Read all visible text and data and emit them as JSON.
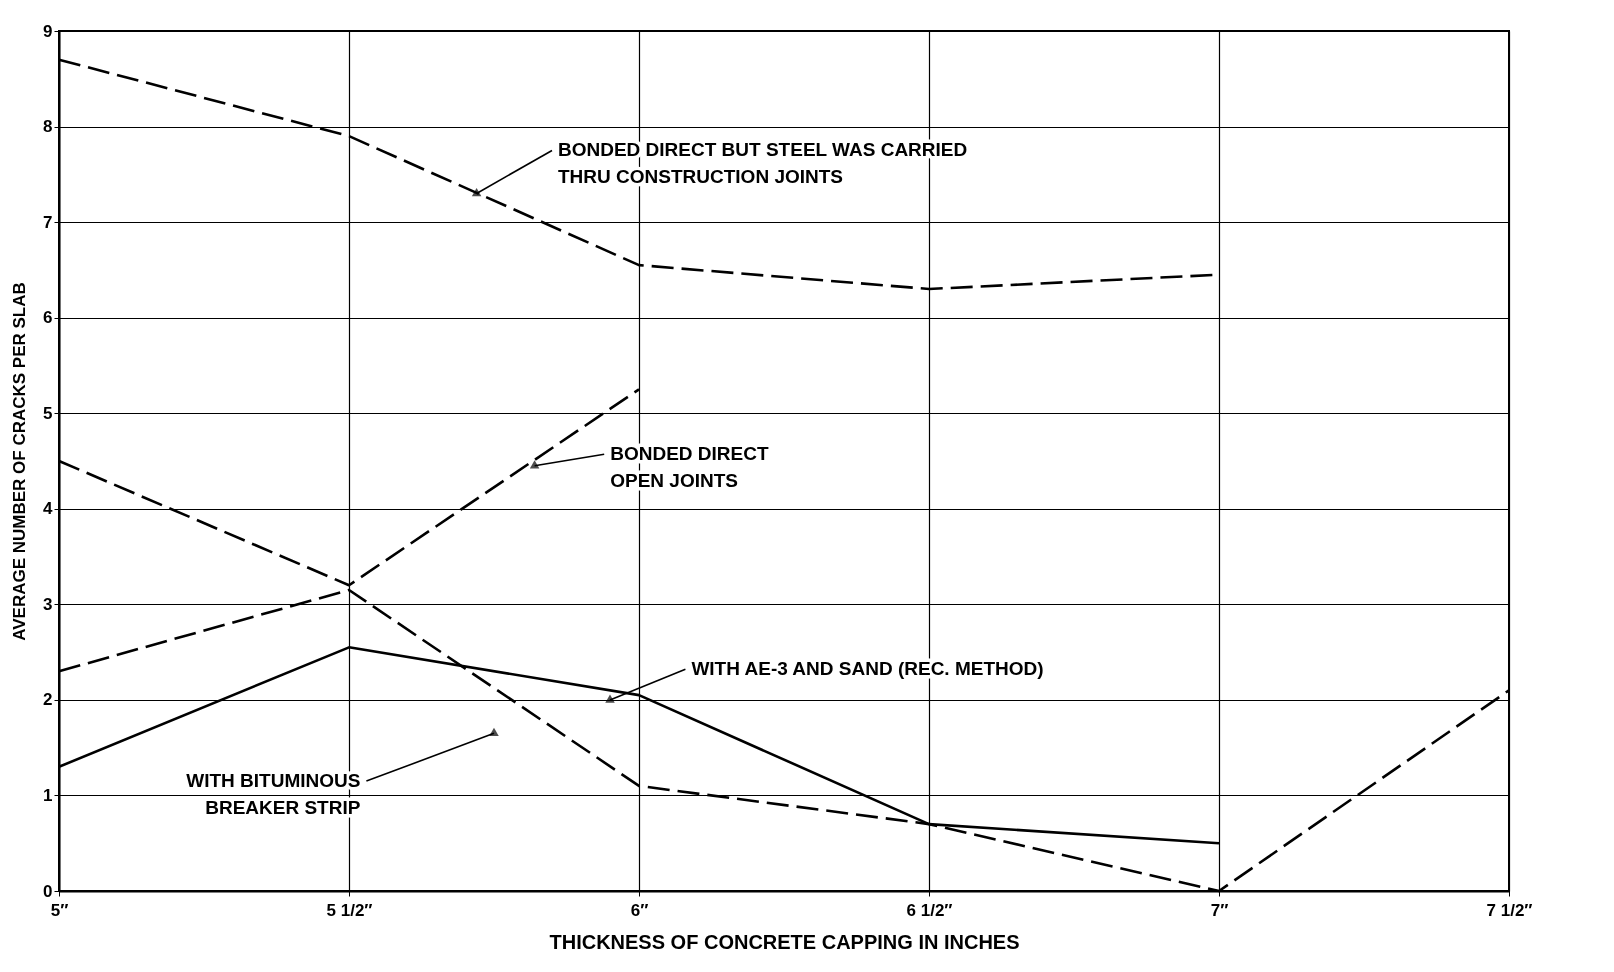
{
  "chart_data": {
    "type": "line",
    "xlabel": "THICKNESS OF CONCRETE CAPPING IN INCHES",
    "ylabel": "AVERAGE NUMBER OF CRACKS PER SLAB",
    "x": [
      5,
      5.5,
      6,
      6.5,
      7,
      7.5
    ],
    "series": [
      {
        "color": "#000000",
        "line_style": "dashed",
        "values": [
          8.7,
          7.9,
          6.55,
          6.3,
          6.45,
          null
        ]
      },
      {
        "color": "#000000",
        "line_style": "dashed",
        "values": [
          4.5,
          3.2,
          5.25,
          null,
          null,
          null
        ]
      },
      {
        "color": "#000000",
        "line_style": "dashed",
        "values": [
          2.3,
          3.15,
          1.1,
          0.7,
          0,
          2.1
        ]
      },
      {
        "color": "#000000",
        "line_style": "solid",
        "values": [
          1.3,
          2.55,
          2.05,
          0.7,
          0.5,
          null
        ]
      }
    ],
    "annotations": [
      {
        "text": "BONDED DIRECT BUT STEEL WAS CARRIED\nTHRU CONSTRUCTION JOINTS",
        "x": 5.72,
        "y": 7.3
      },
      {
        "text": "BONDED DIRECT\nOPEN JOINTS",
        "x": 5.82,
        "y": 4.45
      },
      {
        "text": "WITH AE-3 AND SAND (REC. METHOD)",
        "x": 5.95,
        "y": 2.0
      },
      {
        "text": "WITH BITUMINOUS\nBREAKER STRIP",
        "x": 5.75,
        "y": 1.65
      }
    ],
    "xlim": [
      5,
      7.5
    ],
    "ylim": [
      0,
      9
    ],
    "xticks": [
      {
        "value": 5,
        "label": "5″"
      },
      {
        "value": 5.5,
        "label": "5 1/2″"
      },
      {
        "value": 6,
        "label": "6″"
      },
      {
        "value": 6.5,
        "label": "6 1/2″"
      },
      {
        "value": 7,
        "label": "7″"
      },
      {
        "value": 7.5,
        "label": "7 1/2″"
      }
    ],
    "yticks": [
      0,
      1,
      2,
      3,
      4,
      5,
      6,
      7,
      8,
      9
    ],
    "grid": true,
    "marker": "none"
  }
}
